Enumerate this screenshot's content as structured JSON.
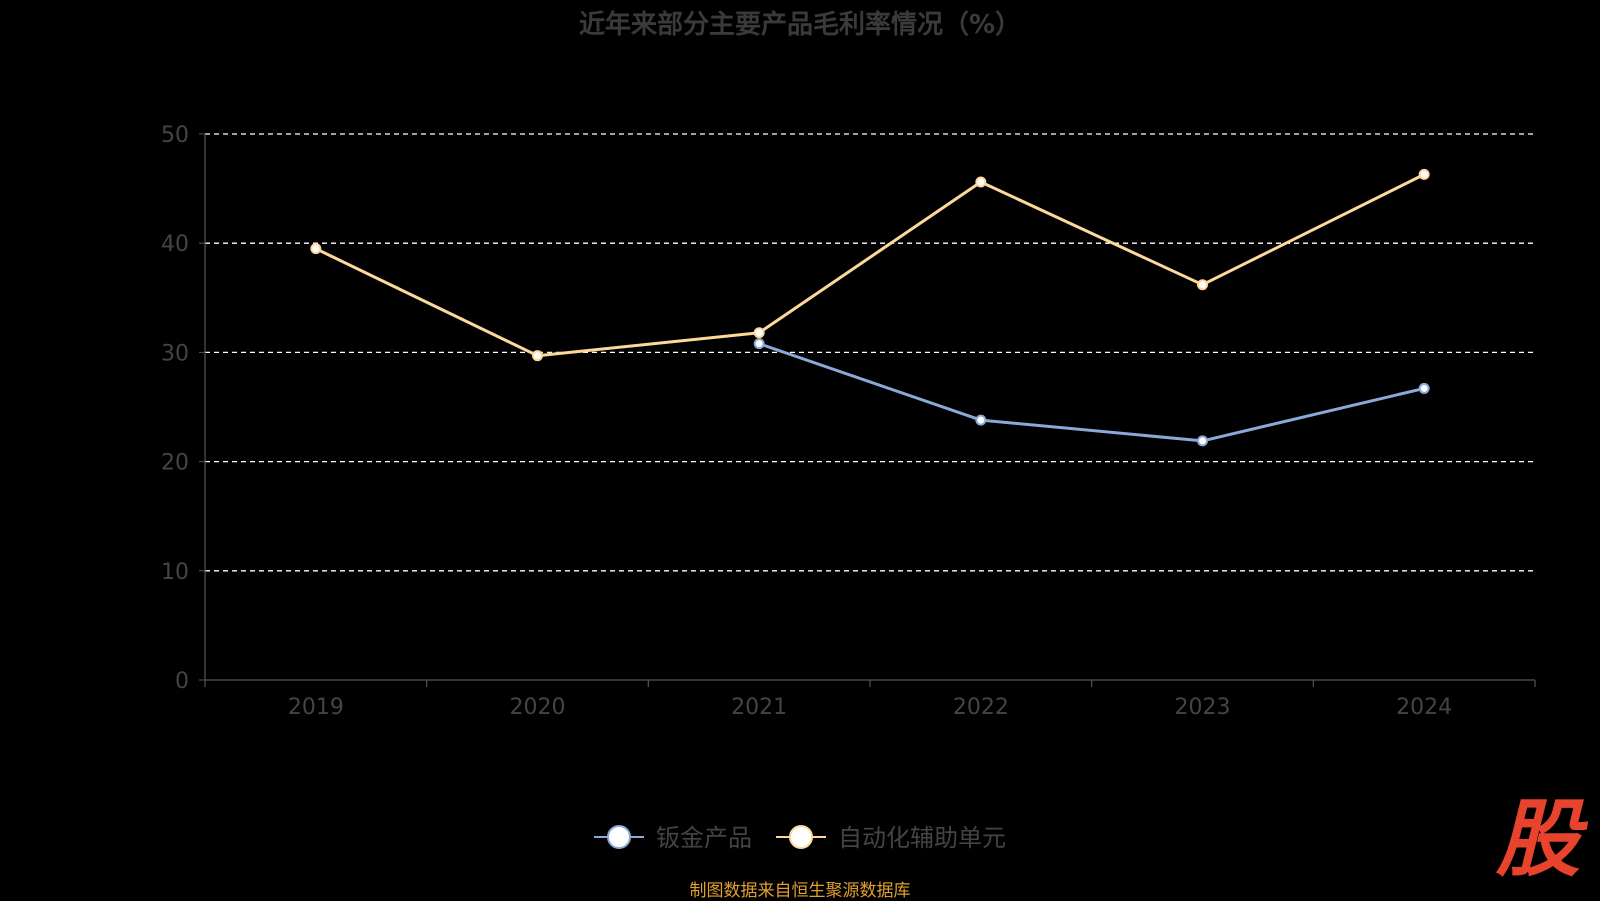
{
  "title": "近年来部分主要产品毛利率情况（%）",
  "source_note": "制图数据来自恒生聚源数据库",
  "brand_logo_text": "股",
  "colors": {
    "background": "#000000",
    "title": "#3a3a3a",
    "axis": "#555555",
    "tick_label": "#444444",
    "grid": "#ffffff",
    "legend_text": "#444444",
    "source_note": "#e0a030",
    "brand_logo": "#e8432d"
  },
  "chart_data": {
    "type": "line",
    "title": "近年来部分主要产品毛利率情况（%）",
    "xlabel": "",
    "ylabel": "",
    "categories": [
      "2019",
      "2020",
      "2021",
      "2022",
      "2023",
      "2024"
    ],
    "ylim": [
      0,
      50
    ],
    "yticks": [
      0,
      10,
      20,
      30,
      40,
      50
    ],
    "grid": true,
    "grid_style": "dashed",
    "legend_position": "bottom",
    "series": [
      {
        "name": "钣金产品",
        "color": "#8aa8d8",
        "values": [
          null,
          null,
          30.8,
          23.8,
          21.9,
          26.7
        ]
      },
      {
        "name": "自动化辅助单元",
        "color": "#fcd89a",
        "values": [
          39.5,
          29.7,
          31.8,
          45.6,
          36.2,
          46.3
        ]
      }
    ]
  }
}
